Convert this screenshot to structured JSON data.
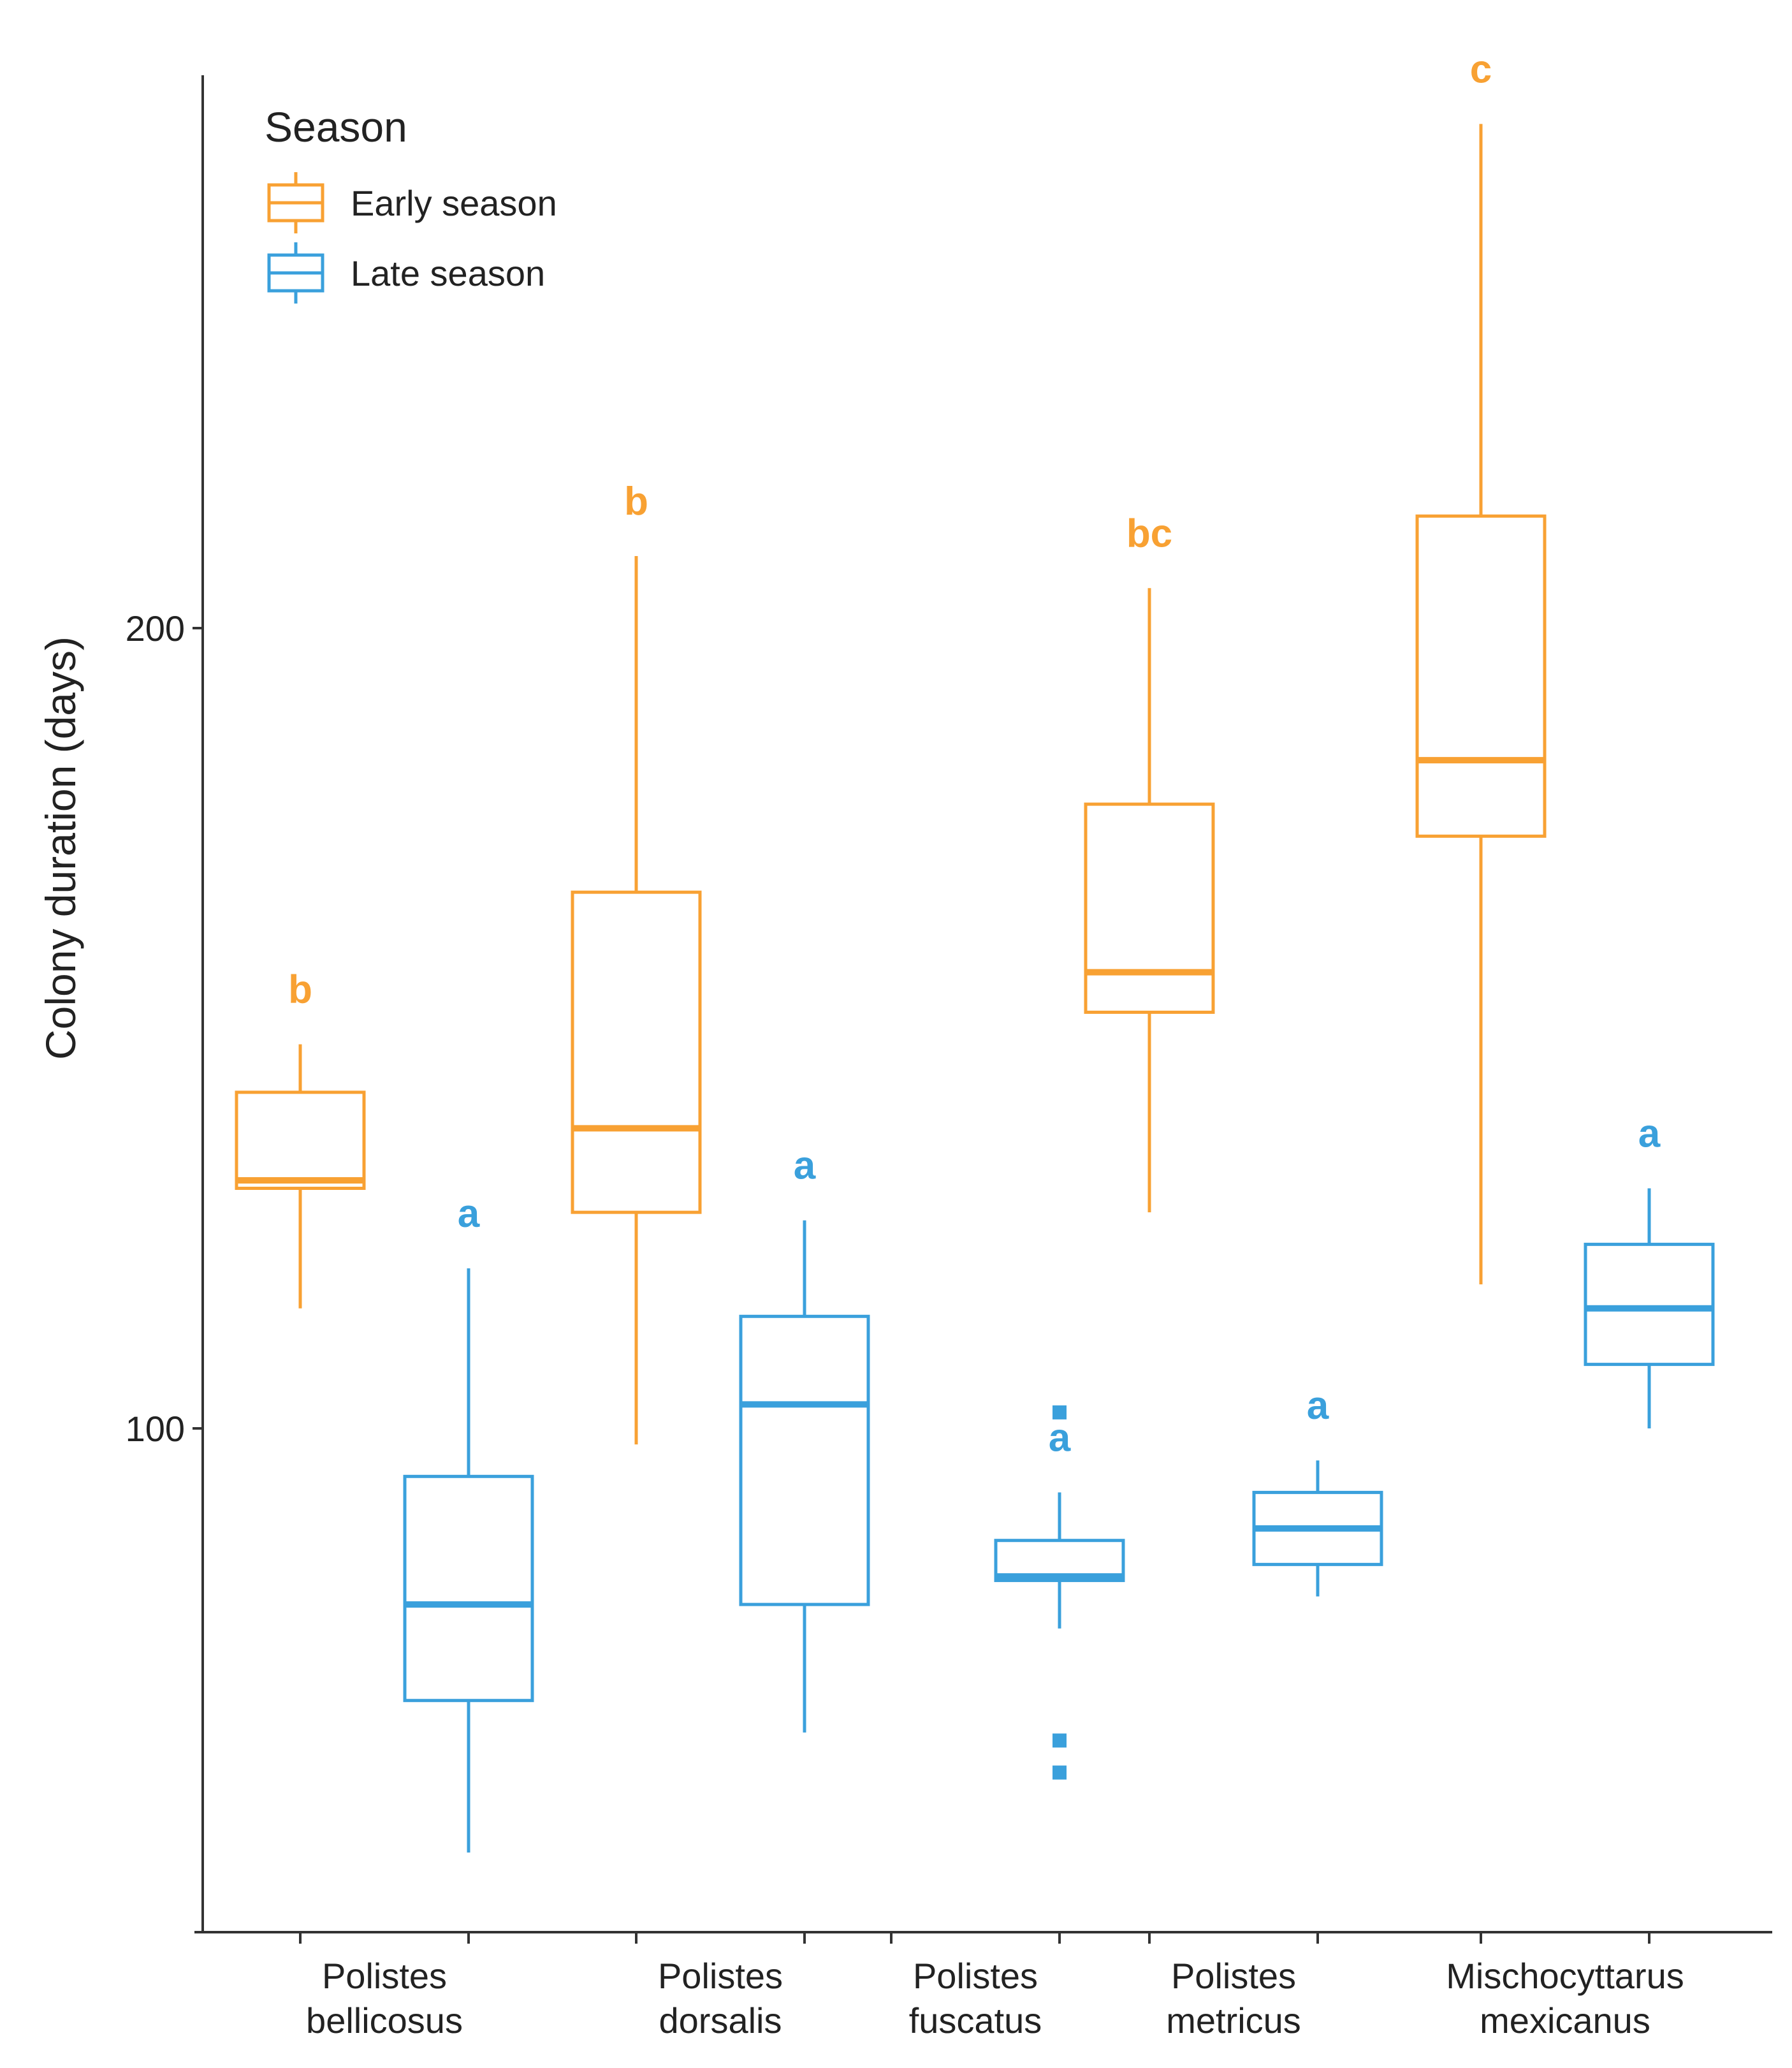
{
  "colors": {
    "early": "#F8A133",
    "late": "#3AA0DC",
    "axis": "#333333",
    "text": "#222222"
  },
  "legend": {
    "title": "Season",
    "items": [
      {
        "key": "early",
        "label": "Early season"
      },
      {
        "key": "late",
        "label": "Late season"
      }
    ]
  },
  "chart_data": {
    "type": "boxplot",
    "title": "",
    "xlabel": "",
    "ylabel": "Colony duration (days)",
    "ylim": [
      35,
      270
    ],
    "yticks": [
      100,
      200
    ],
    "legend_position": "top-left",
    "categories": [
      {
        "line1": "Polistes",
        "line2": "bellicosus"
      },
      {
        "line1": "Polistes",
        "line2": "dorsalis"
      },
      {
        "line1": "Polistes",
        "line2": "fuscatus"
      },
      {
        "line1": "Polistes",
        "line2": "metricus"
      },
      {
        "line1": "Mischocyttarus",
        "line2": "mexicanus"
      }
    ],
    "series": [
      {
        "name": "Early season",
        "key": "early",
        "boxes": [
          {
            "category": 0,
            "whisker_low": 115,
            "q1": 130,
            "median": 131,
            "q3": 142,
            "whisker_high": 148,
            "outliers": [],
            "letter": "b"
          },
          {
            "category": 1,
            "whisker_low": 98,
            "q1": 127,
            "median": 137.5,
            "q3": 167,
            "whisker_high": 209,
            "outliers": [],
            "letter": "b"
          },
          {
            "category": 3,
            "whisker_low": 127,
            "q1": 152,
            "median": 157,
            "q3": 178,
            "whisker_high": 205,
            "outliers": [],
            "letter": "bc"
          },
          {
            "category": 4,
            "whisker_low": 118,
            "q1": 174,
            "median": 183.5,
            "q3": 214,
            "whisker_high": 263,
            "outliers": [],
            "letter": "c"
          }
        ]
      },
      {
        "name": "Late season",
        "key": "late",
        "boxes": [
          {
            "category": 0,
            "whisker_low": 47,
            "q1": 66,
            "median": 78,
            "q3": 94,
            "whisker_high": 120,
            "outliers": [],
            "letter": "a"
          },
          {
            "category": 1,
            "whisker_low": 62,
            "q1": 78,
            "median": 103,
            "q3": 114,
            "whisker_high": 126,
            "outliers": [],
            "letter": "a"
          },
          {
            "category": 2,
            "whisker_low": 75,
            "q1": 81,
            "median": 81.5,
            "q3": 86,
            "whisker_high": 92,
            "outliers": [
              102,
              61,
              57
            ],
            "letter": "a"
          },
          {
            "category": 3,
            "whisker_low": 79,
            "q1": 83,
            "median": 87.5,
            "q3": 92,
            "whisker_high": 96,
            "outliers": [],
            "letter": "a"
          },
          {
            "category": 4,
            "whisker_low": 100,
            "q1": 108,
            "median": 115,
            "q3": 123,
            "whisker_high": 130,
            "outliers": [],
            "letter": "a"
          }
        ]
      }
    ]
  }
}
